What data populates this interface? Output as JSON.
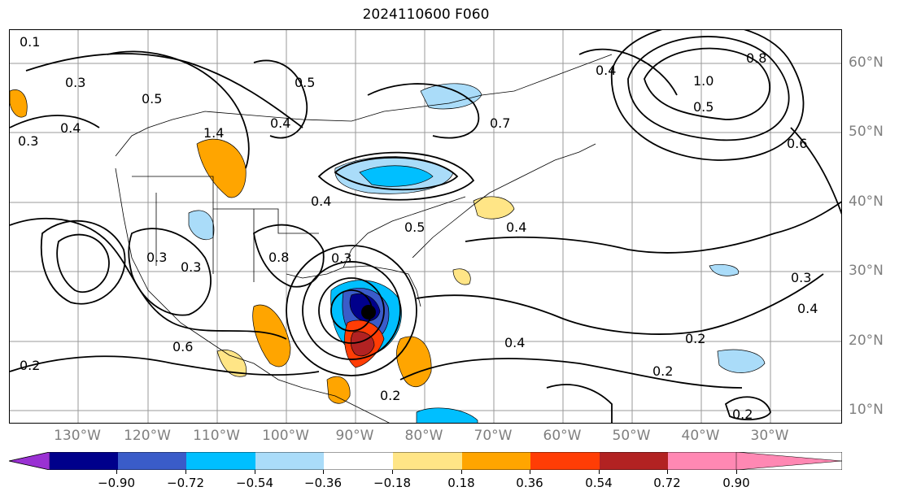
{
  "title": "2024110600 F060",
  "lon_labels": [
    "130°W",
    "120°W",
    "110°W",
    "100°W",
    "90°W",
    "80°W",
    "70°W",
    "60°W",
    "50°W",
    "40°W",
    "30°W"
  ],
  "lat_labels": [
    "60°N",
    "50°N",
    "40°N",
    "30°N",
    "20°N",
    "10°N"
  ],
  "contour_labels": [
    "0.1",
    "0.3",
    "0.4",
    "0.3",
    "1.4",
    "0.4",
    "0.5",
    "0.4",
    "0.3",
    "0.8",
    "0.3",
    "0.5",
    "0.4",
    "0.7",
    "0.4",
    "1.0",
    "0.5",
    "0.6",
    "0.8",
    "0.3",
    "0.2",
    "0.2",
    "0.2",
    "0.4",
    "0.2",
    "0.3",
    "0.4",
    "0.2",
    "0.6",
    "0.5"
  ],
  "colorbar": {
    "ticks": [
      "−0.90",
      "−0.72",
      "−0.54",
      "−0.36",
      "−0.18",
      "0.18",
      "0.36",
      "0.54",
      "0.72",
      "0.90"
    ],
    "colors": [
      "#9a31d3",
      "#00008b",
      "#3a5cc9",
      "#00bfff",
      "#aadcf9",
      "#ffffff",
      "#ffe586",
      "#ffa500",
      "#ff3d05",
      "#b22222",
      "#ff88b3"
    ]
  }
}
